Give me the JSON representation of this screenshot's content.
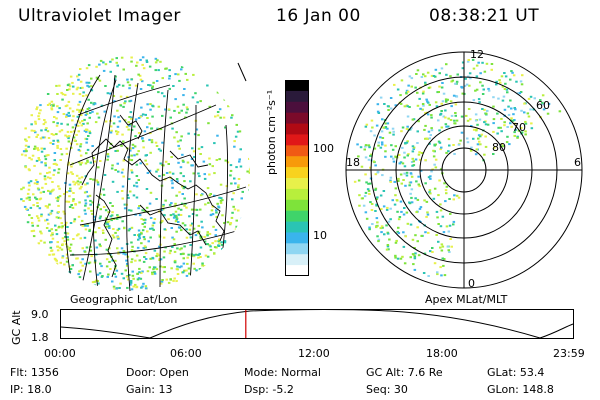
{
  "header": {
    "instrument": "Ultraviolet Imager",
    "date": "16 Jan 00",
    "time": "08:38:21 UT"
  },
  "colorbar": {
    "label": "photon cm⁻²s⁻¹",
    "ticks": [
      "100",
      "10"
    ],
    "colors": [
      "#000000",
      "#2a1a3a",
      "#4b0f3c",
      "#7b0a2a",
      "#b00a14",
      "#e01818",
      "#f05a14",
      "#f79a0a",
      "#f8d21e",
      "#e8f04a",
      "#b8ef3c",
      "#7ee33a",
      "#3fd46a",
      "#2ac4b4",
      "#3ab4ec",
      "#8fd6f2",
      "#d8f0f8",
      "#ffffff"
    ]
  },
  "geo_panel": {
    "label": "Geographic Lat/Lon"
  },
  "polar_panel": {
    "label": "Apex MLat/MLT",
    "mlt_labels": [
      "12",
      "18",
      "6",
      "0"
    ],
    "lat_labels": [
      "60",
      "70",
      "80"
    ]
  },
  "altitude_plot": {
    "ylabel": "GC Alt",
    "yticks": [
      "9.0",
      "1.8"
    ],
    "xticks": [
      "00:00",
      "06:00",
      "12:00",
      "18:00",
      "23:59"
    ],
    "current_time_fraction": 0.361,
    "marker_color": "#d00000"
  },
  "info_rows": {
    "flt": "Flt: 1356",
    "door": "Door: Open",
    "mode": "Mode: Normal",
    "gcalt": "GC Alt: 7.6 Re",
    "glat": "GLat:  53.4",
    "ip": "IP: 18.0",
    "gain": "Gain: 13",
    "dsp": "Dsp:    -5.2",
    "seq": "Seq: 30",
    "glon": "GLon: 148.8"
  }
}
